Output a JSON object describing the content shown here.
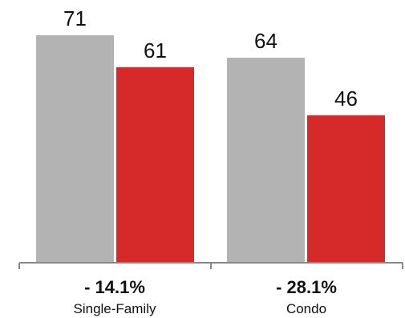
{
  "chart_data": {
    "type": "bar",
    "categories": [
      "Single-Family",
      "Condo"
    ],
    "category_changes": [
      "- 14.1%",
      "- 28.1%"
    ],
    "series": [
      {
        "values": [
          71,
          64
        ],
        "color": "#b3b3b3"
      },
      {
        "values": [
          61,
          46
        ],
        "color": "#d62a2a"
      }
    ],
    "ylim": [
      0,
      71
    ],
    "axis_color": "#888888",
    "grid": false,
    "legend": "none"
  }
}
